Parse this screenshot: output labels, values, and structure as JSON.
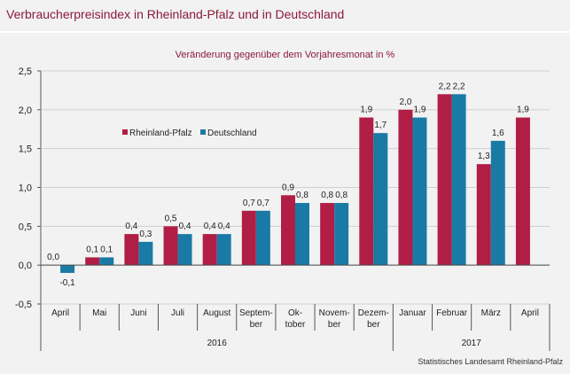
{
  "title": "Verbraucherpreisindex in Rheinland-Pfalz und in Deutschland",
  "source": "Statistisches Landesamt Rheinland-Pfalz",
  "colors": {
    "series_rp": "#b01e45",
    "series_de": "#1a7aa6",
    "background": "#f2f2f2",
    "title": "#8b1a3a"
  },
  "chart_data": {
    "type": "bar",
    "title": "Veränderung gegenüber dem Vorjahresmonat in %",
    "xlabel": "",
    "ylabel": "",
    "categories": [
      [
        "April"
      ],
      [
        "Mai"
      ],
      [
        "Juni"
      ],
      [
        "Juli"
      ],
      [
        "August"
      ],
      [
        "Septem-",
        "ber"
      ],
      [
        "Ok-",
        "tober"
      ],
      [
        "Novem-",
        "ber"
      ],
      [
        "Dezem-",
        "ber"
      ],
      [
        "Januar"
      ],
      [
        "Februar"
      ],
      [
        "März"
      ],
      [
        "April"
      ]
    ],
    "years": [
      {
        "label": "2016",
        "start": 0,
        "end": 8
      },
      {
        "label": "2017",
        "start": 9,
        "end": 12
      }
    ],
    "series": [
      {
        "name": "Rheinland-Pfalz",
        "color": "#b01e45",
        "values": [
          0.0,
          0.1,
          0.4,
          0.5,
          0.4,
          0.7,
          0.9,
          0.8,
          1.9,
          2.0,
          2.2,
          1.3,
          1.9
        ],
        "labels": [
          "0,0",
          "0,1",
          "0,4",
          "0,5",
          "0,4",
          "0,7",
          "0,9",
          "0,8",
          "1,9",
          "2,0",
          "2,2",
          "1,3",
          "1,9"
        ]
      },
      {
        "name": "Deutschland",
        "color": "#1a7aa6",
        "values": [
          -0.1,
          0.1,
          0.3,
          0.4,
          0.4,
          0.7,
          0.8,
          0.8,
          1.7,
          1.9,
          2.2,
          1.6,
          null
        ],
        "labels": [
          "-0,1",
          "0,1",
          "0,3",
          "0,4",
          "0,4",
          "0,7",
          "0,8",
          "0,8",
          "1,7",
          "1,9",
          "2,2",
          "1,6",
          ""
        ]
      }
    ],
    "yticks": [
      -0.5,
      0.0,
      0.5,
      1.0,
      1.5,
      2.0,
      2.5
    ],
    "ytick_labels": [
      "-0,5",
      "0,0",
      "0,5",
      "1,0",
      "1,5",
      "2,0",
      "2,5"
    ],
    "ylim": [
      -0.5,
      2.5
    ],
    "grid": true,
    "legend": "upper-left"
  }
}
